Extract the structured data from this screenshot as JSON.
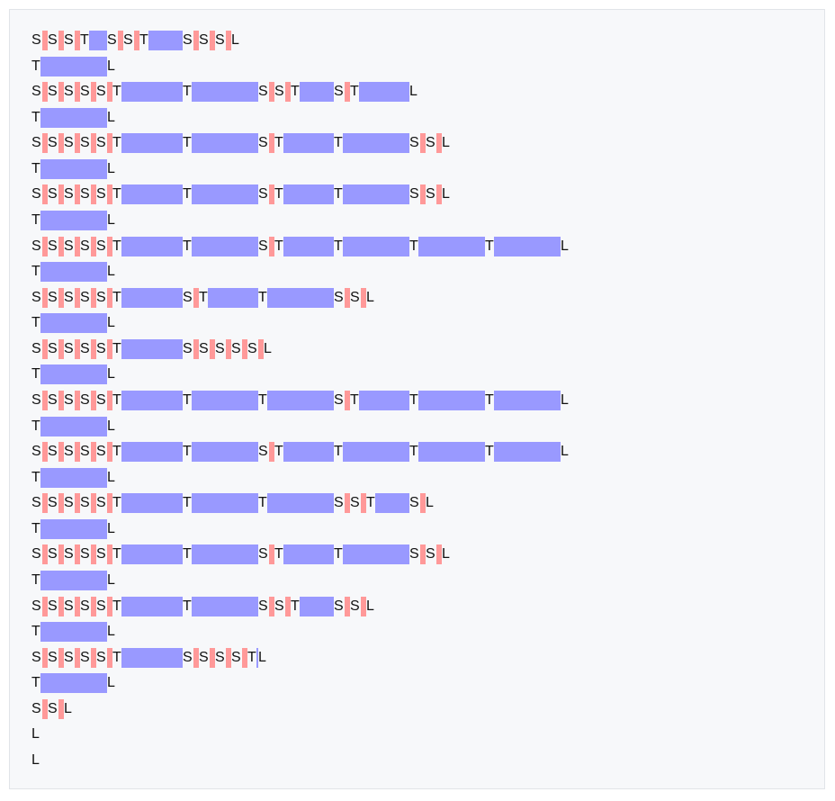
{
  "legend": {
    "space": "S",
    "tab": "T",
    "linefeed": "L"
  },
  "colors": {
    "space_marker": "#ff9999",
    "tab_marker": "#9999ff",
    "background": "#f7f8fa"
  },
  "lines": [
    "SSSTSSTSSSL",
    "TL",
    "SSSSSTTSSTSTL",
    "TL",
    "SSSSSTTSTTSSL",
    "TL",
    "SSSSSTTSTTSSL",
    "TL",
    "SSSSSTTSTTTTL",
    "TL",
    "SSSSSTSTTSSL",
    "TL",
    "SSSSSTSSSSSL",
    "TL",
    "SSSSSTTTSTTTL",
    "TL",
    "SSSSSTTSTTTTL",
    "TL",
    "SSSSSTTTSSTSL",
    "TL",
    "SSSSSTTSTTSSL",
    "TL",
    "SSSSSTTSSTSSL",
    "TL",
    "SSSSSTSSSSTL",
    "TL",
    "SSL",
    "L",
    "L"
  ]
}
